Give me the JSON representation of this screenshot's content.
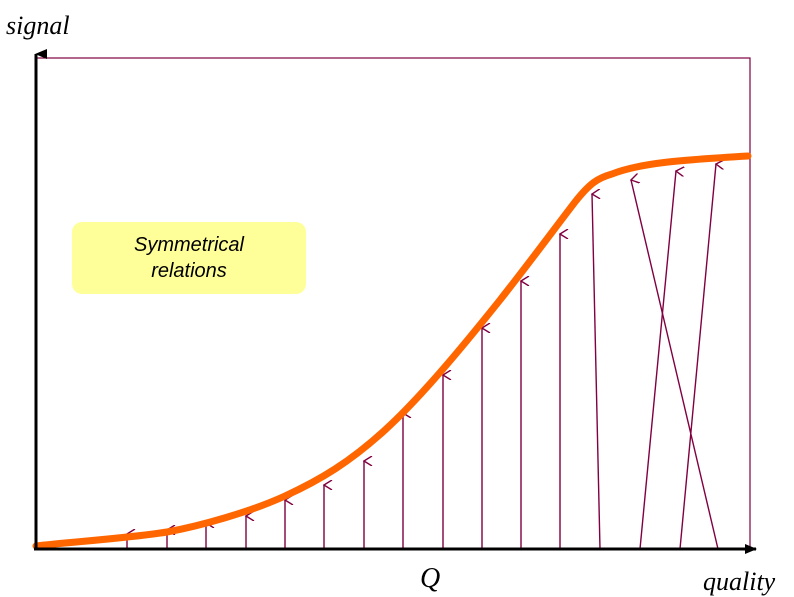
{
  "labels": {
    "y_axis": "signal",
    "x_axis": "quality",
    "q_marker": "Q"
  },
  "callout": {
    "text": "Symmetrical relations"
  },
  "colors": {
    "curve": "#ff6600",
    "arrows": "#800040",
    "frame": "#800040",
    "axes": "#000000",
    "callout_bg": "#ffff99"
  }
}
